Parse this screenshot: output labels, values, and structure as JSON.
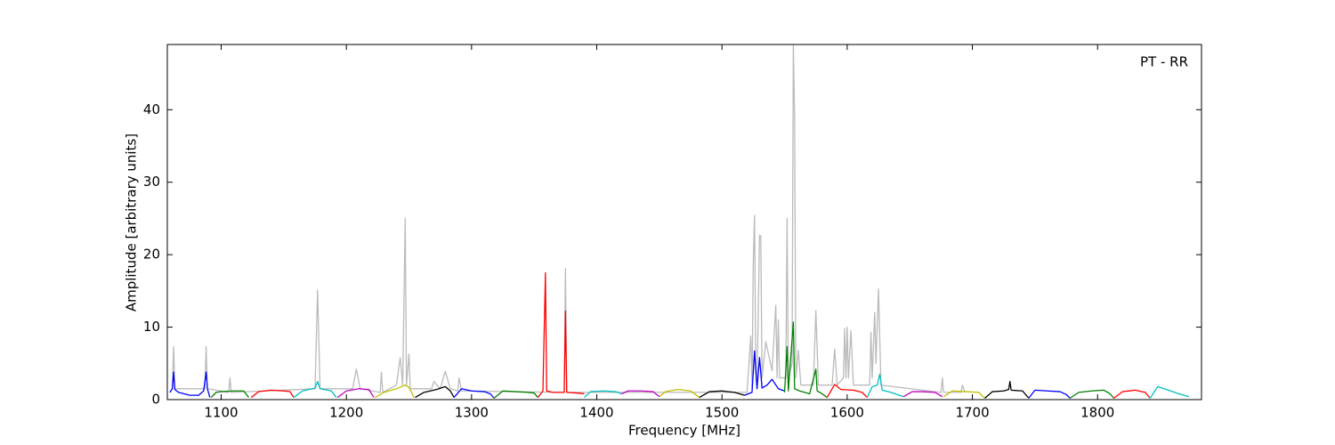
{
  "chart_data": {
    "type": "line",
    "xlabel": "Frequency [MHz]",
    "ylabel": "Amplitude [arbitrary units]",
    "annotation": "PT - RR",
    "xlim": [
      1057,
      1883
    ],
    "ylim": [
      0,
      49
    ],
    "xticks": [
      1100,
      1200,
      1300,
      1400,
      1500,
      1600,
      1700,
      1800
    ],
    "yticks": [
      0,
      10,
      20,
      30,
      40
    ],
    "series": [
      {
        "color": "#bbbbbb",
        "x": [
          1059,
          1061,
          1062,
          1063,
          1087,
          1088,
          1089,
          1106,
          1107,
          1108,
          1175,
          1177,
          1179,
          1205,
          1208,
          1211,
          1227,
          1228,
          1229,
          1240,
          1243,
          1245,
          1247,
          1248,
          1250,
          1251,
          1268,
          1270,
          1275,
          1279,
          1283,
          1289,
          1290,
          1292,
          1374,
          1375,
          1376,
          1520,
          1523,
          1524,
          1525,
          1526,
          1527,
          1528,
          1530,
          1531,
          1532,
          1535,
          1540,
          1543,
          1544,
          1545,
          1546,
          1551,
          1552,
          1553,
          1556,
          1557,
          1558,
          1559,
          1561,
          1563,
          1573,
          1575,
          1577,
          1588,
          1590,
          1592,
          1597,
          1598,
          1599,
          1600,
          1601,
          1603,
          1605,
          1618,
          1619,
          1620,
          1622,
          1623,
          1625,
          1627,
          1675,
          1676,
          1677,
          1691,
          1692,
          1694
        ],
        "values": [
          1,
          1.5,
          7.3,
          1.5,
          1.5,
          7.3,
          1.5,
          1,
          3,
          1,
          1.5,
          15.1,
          1.5,
          1.5,
          4.2,
          1.5,
          1,
          3.8,
          1,
          2,
          5.8,
          2,
          25,
          2,
          6.3,
          1.5,
          1.5,
          2.5,
          1.5,
          3.9,
          1.5,
          1.2,
          3,
          1.2,
          1,
          18.1,
          1,
          1,
          8.8,
          1.5,
          18.7,
          25.4,
          4,
          2,
          22.7,
          22.6,
          3,
          8,
          4,
          13,
          3,
          11,
          3,
          3,
          25,
          3,
          5,
          49,
          39,
          3,
          6.8,
          2,
          2,
          12.3,
          2,
          2,
          7,
          2,
          3,
          9.8,
          3,
          10,
          3,
          9.5,
          2,
          2,
          9.3,
          3,
          12,
          5,
          15.3,
          2,
          1,
          3,
          1,
          1,
          2,
          1
        ]
      },
      {
        "color": "#0000ff",
        "x": [
          1059,
          1061,
          1062,
          1063,
          1066,
          1075,
          1082,
          1086,
          1088,
          1089,
          1091
        ],
        "values": [
          1.0,
          1.5,
          3.8,
          1.4,
          1.0,
          0.6,
          0.6,
          1.2,
          3.8,
          1.5,
          0.3
        ]
      },
      {
        "color": "#008000",
        "x": [
          1092,
          1096,
          1100,
          1110,
          1118,
          1122
        ],
        "values": [
          0.3,
          1.0,
          1.1,
          1.2,
          1.2,
          0.3
        ]
      },
      {
        "color": "#ff0000",
        "x": [
          1124,
          1130,
          1140,
          1150,
          1155,
          1158
        ],
        "values": [
          0.3,
          1.1,
          1.3,
          1.2,
          1.1,
          0.3
        ]
      },
      {
        "color": "#00bfbf",
        "x": [
          1158,
          1165,
          1175,
          1177,
          1179,
          1188,
          1192
        ],
        "values": [
          0.3,
          1.2,
          1.6,
          2.5,
          1.5,
          1.2,
          0.3
        ]
      },
      {
        "color": "#bf00bf",
        "x": [
          1193,
          1200,
          1210,
          1218,
          1222
        ],
        "values": [
          0.3,
          1.2,
          1.5,
          1.4,
          0.3
        ]
      },
      {
        "color": "#bfbf00",
        "x": [
          1223,
          1230,
          1240,
          1247,
          1250,
          1254
        ],
        "values": [
          0.3,
          1.0,
          1.5,
          2.0,
          1.7,
          0.3
        ]
      },
      {
        "color": "#000000",
        "x": [
          1255,
          1262,
          1272,
          1279,
          1283,
          1286
        ],
        "values": [
          0.3,
          1.0,
          1.4,
          1.8,
          1.2,
          0.3
        ]
      },
      {
        "color": "#0000ff",
        "x": [
          1286,
          1292,
          1300,
          1310,
          1315,
          1318
        ],
        "values": [
          0.3,
          1.5,
          1.2,
          1.1,
          0.8,
          0.2
        ]
      },
      {
        "color": "#008000",
        "x": [
          1318,
          1325,
          1335,
          1345,
          1350,
          1353
        ],
        "values": [
          0.2,
          1.2,
          1.1,
          1.0,
          0.9,
          0.3
        ]
      },
      {
        "color": "#ff0000",
        "x": [
          1353,
          1357,
          1359,
          1360,
          1365,
          1374,
          1375,
          1376,
          1385,
          1390
        ],
        "values": [
          0.3,
          1.2,
          17.5,
          1.2,
          1.0,
          1.0,
          12.2,
          1.0,
          0.9,
          0.8
        ]
      },
      {
        "color": "#00bfbf",
        "x": [
          1390,
          1395,
          1405,
          1415,
          1420
        ],
        "values": [
          0.3,
          1.1,
          1.2,
          1.1,
          0.8
        ]
      },
      {
        "color": "#bf00bf",
        "x": [
          1420,
          1425,
          1435,
          1445,
          1450
        ],
        "values": [
          0.8,
          1.2,
          1.2,
          1.1,
          0.4
        ]
      },
      {
        "color": "#bfbf00",
        "x": [
          1450,
          1455,
          1465,
          1475,
          1482
        ],
        "values": [
          0.4,
          1.1,
          1.4,
          1.2,
          0.3
        ]
      },
      {
        "color": "#000000",
        "x": [
          1482,
          1490,
          1500,
          1510,
          1518
        ],
        "values": [
          0.3,
          1.1,
          1.2,
          1.0,
          0.6
        ]
      },
      {
        "color": "#0000ff",
        "x": [
          1518,
          1524,
          1526,
          1528,
          1530,
          1532,
          1536,
          1540,
          1545,
          1550
        ],
        "values": [
          0.6,
          1.0,
          6.7,
          1.5,
          5.8,
          1.6,
          2.0,
          2.8,
          1.5,
          1.2
        ]
      },
      {
        "color": "#008000",
        "x": [
          1550,
          1552,
          1553,
          1557,
          1558,
          1562,
          1570,
          1575,
          1576,
          1580,
          1584
        ],
        "values": [
          1.0,
          7.3,
          1.2,
          10.7,
          1.5,
          1.2,
          0.8,
          4.2,
          1.2,
          0.8,
          0.3
        ]
      },
      {
        "color": "#ff0000",
        "x": [
          1584,
          1590,
          1595,
          1605,
          1612,
          1616
        ],
        "values": [
          0.3,
          2.1,
          1.4,
          1.3,
          1.0,
          0.3
        ]
      },
      {
        "color": "#00bfbf",
        "x": [
          1616,
          1620,
          1624,
          1626,
          1628,
          1635,
          1645
        ],
        "values": [
          0.3,
          1.8,
          2.0,
          3.5,
          1.3,
          1.0,
          0.4
        ]
      },
      {
        "color": "#bf00bf",
        "x": [
          1645,
          1652,
          1660,
          1670,
          1676
        ],
        "values": [
          0.4,
          1.1,
          1.1,
          1.0,
          0.4
        ]
      },
      {
        "color": "#bfbf00",
        "x": [
          1677,
          1684,
          1695,
          1705,
          1710
        ],
        "values": [
          0.4,
          1.2,
          1.1,
          1.0,
          0.2
        ]
      },
      {
        "color": "#000000",
        "x": [
          1710,
          1716,
          1725,
          1729,
          1730,
          1731,
          1740,
          1745
        ],
        "values": [
          0.2,
          1.1,
          1.2,
          1.4,
          2.5,
          1.3,
          1.2,
          0.2
        ]
      },
      {
        "color": "#0000ff",
        "x": [
          1745,
          1750,
          1760,
          1770,
          1775,
          1778
        ],
        "values": [
          0.2,
          1.3,
          1.2,
          1.1,
          0.7,
          0.2
        ]
      },
      {
        "color": "#008000",
        "x": [
          1778,
          1785,
          1795,
          1805,
          1810,
          1813
        ],
        "values": [
          0.2,
          1.0,
          1.2,
          1.3,
          0.8,
          0.2
        ]
      },
      {
        "color": "#ff0000",
        "x": [
          1813,
          1820,
          1830,
          1838,
          1842
        ],
        "values": [
          0.2,
          1.1,
          1.3,
          1.0,
          0.2
        ]
      },
      {
        "color": "#00bfbf",
        "x": [
          1842,
          1848,
          1855,
          1865,
          1873
        ],
        "values": [
          0.2,
          1.8,
          1.4,
          0.8,
          0.4
        ]
      }
    ]
  }
}
